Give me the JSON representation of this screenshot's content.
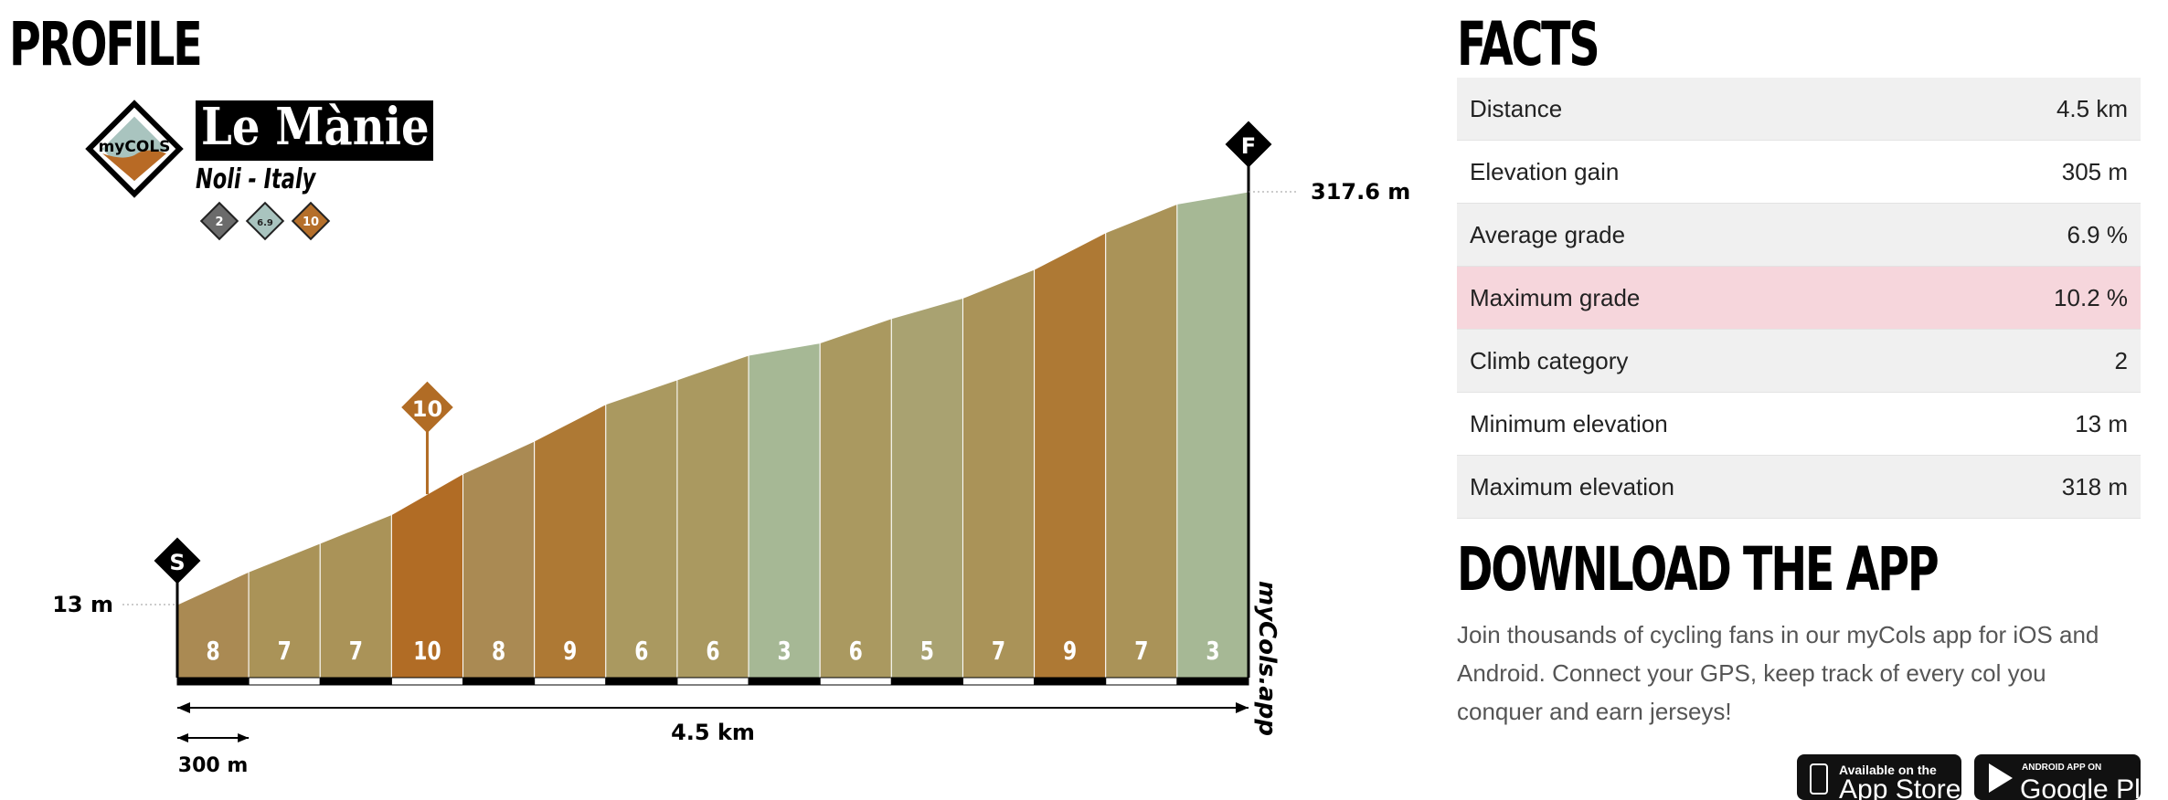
{
  "profile": {
    "heading": "PROFILE",
    "logo_text": "myCOLS",
    "climb_name": "Le Mànie",
    "location": "Noli - Italy",
    "badges": [
      {
        "value": "2",
        "color": "#6b6b6b"
      },
      {
        "value": "6.9",
        "color": "#a9c4bf"
      },
      {
        "value": "10",
        "color": "#b56f2a"
      }
    ],
    "start_marker": "S",
    "finish_marker": "F",
    "max_marker": "10",
    "start_elevation_label": "13 m",
    "end_elevation_label": "317.6 m",
    "total_distance_label": "4.5 km",
    "segment_length_label": "300 m",
    "watermark": "myCols.app"
  },
  "chart_data": {
    "type": "area",
    "title": "Le Mànie",
    "xlabel": "4.5 km",
    "ylabel": "",
    "segment_length_m": 300,
    "start_elevation_m": 13,
    "end_elevation_m": 317.6,
    "segments": [
      {
        "grade": 8,
        "color": "#aa8a53"
      },
      {
        "grade": 7,
        "color": "#aa9358"
      },
      {
        "grade": 7,
        "color": "#aa9358"
      },
      {
        "grade": 10,
        "color": "#b16c25"
      },
      {
        "grade": 8,
        "color": "#aa8a53"
      },
      {
        "grade": 9,
        "color": "#ae7934"
      },
      {
        "grade": 6,
        "color": "#aa9960"
      },
      {
        "grade": 6,
        "color": "#aa9960"
      },
      {
        "grade": 3,
        "color": "#a6b895"
      },
      {
        "grade": 6,
        "color": "#aa9960"
      },
      {
        "grade": 5,
        "color": "#a9a271"
      },
      {
        "grade": 7,
        "color": "#aa9358"
      },
      {
        "grade": 9,
        "color": "#ae7934"
      },
      {
        "grade": 7,
        "color": "#aa9358"
      },
      {
        "grade": 3,
        "color": "#a6b895"
      }
    ],
    "max_grade_segment_index": 3
  },
  "facts": {
    "heading": "FACTS",
    "rows": [
      {
        "label": "Distance",
        "value": "4.5 km"
      },
      {
        "label": "Elevation gain",
        "value": "305 m"
      },
      {
        "label": "Average grade",
        "value": "6.9 %"
      },
      {
        "label": "Maximum grade",
        "value": "10.2 %"
      },
      {
        "label": "Climb category",
        "value": "2"
      },
      {
        "label": "Minimum elevation",
        "value": "13 m"
      },
      {
        "label": "Maximum elevation",
        "value": "318 m"
      }
    ],
    "highlight_color": "#f6d6dc"
  },
  "download": {
    "heading": "DOWNLOAD THE APP",
    "description": "Join thousands of cycling fans in our myCols app for iOS and Android. Connect your GPS, keep track of every col you conquer and earn jerseys!",
    "app_store": {
      "small": "Available on the",
      "big": "App Store"
    },
    "google_play": {
      "small": "ANDROID APP ON",
      "big": "Google Play"
    }
  }
}
